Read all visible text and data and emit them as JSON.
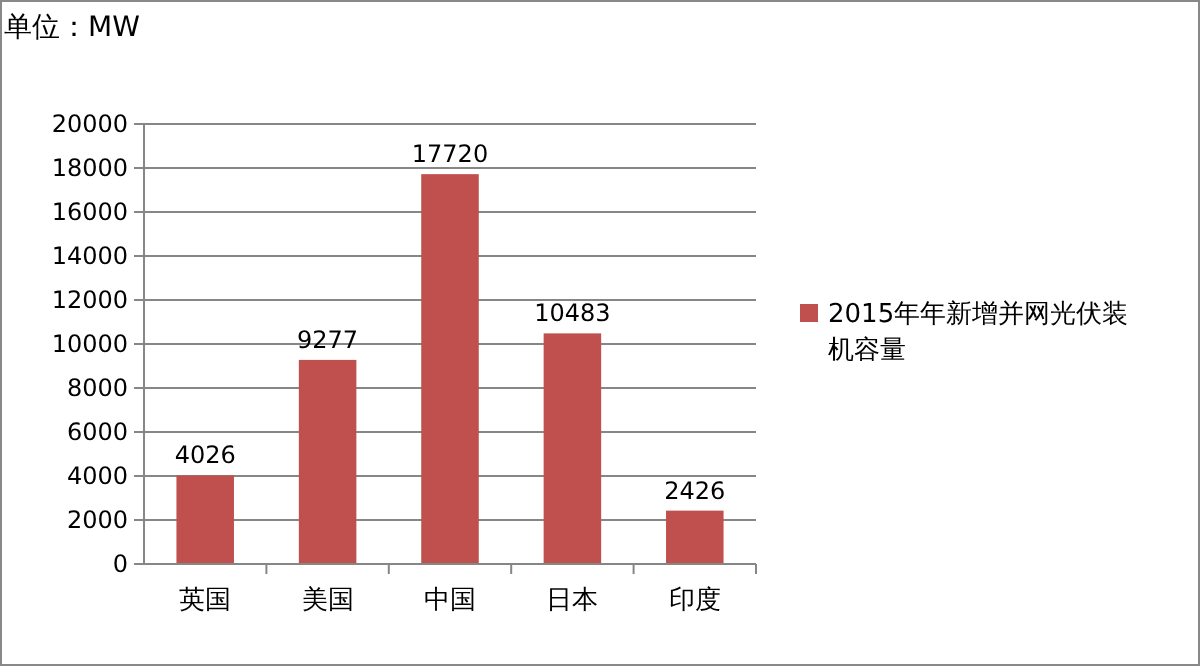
{
  "chart_data": {
    "type": "bar",
    "title": "单位：MW",
    "categories": [
      "英国",
      "美国",
      "中国",
      "日本",
      "印度"
    ],
    "series": [
      {
        "name": "2015年年新增并网光伏装机容量",
        "color": "#c0504d",
        "values": [
          4026,
          9277,
          17720,
          10483,
          2426
        ]
      }
    ],
    "ylim": [
      0,
      20000
    ],
    "yticks": [
      0,
      2000,
      4000,
      6000,
      8000,
      10000,
      12000,
      14000,
      16000,
      18000,
      20000
    ],
    "grid": "y",
    "legend": "right",
    "data_labels": true
  }
}
